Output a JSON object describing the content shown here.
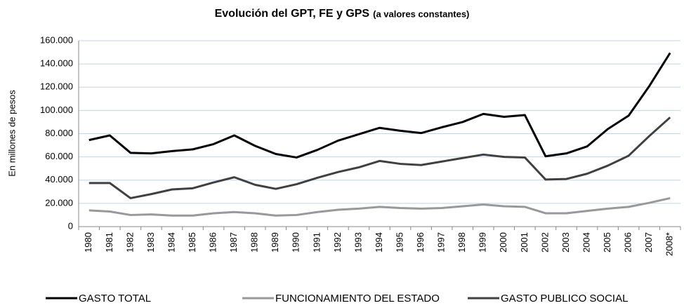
{
  "chart_data": {
    "type": "line",
    "title": "Evolución del GPT, FE y GPS",
    "subtitle": "(a valores constantes)",
    "y_label": "En millones de pesos",
    "categories": [
      "1980",
      "1981",
      "1982",
      "1983",
      "1984",
      "1985",
      "1986",
      "1987",
      "1988",
      "1989",
      "1990",
      "1991",
      "1992",
      "1993",
      "1994",
      "1995",
      "1996",
      "1997",
      "1998",
      "1999",
      "2000",
      "2001",
      "2002",
      "2003",
      "2004",
      "2005",
      "2006",
      "2007",
      "2008*"
    ],
    "series": [
      {
        "name": "GASTO TOTAL",
        "color": "#000000",
        "values": [
          74500,
          78500,
          63500,
          63000,
          65000,
          66500,
          71000,
          78500,
          69500,
          62500,
          59500,
          66000,
          74000,
          79500,
          85000,
          82500,
          80500,
          85500,
          90000,
          97000,
          94500,
          96000,
          60500,
          63000,
          69000,
          84000,
          95500,
          121000,
          149500
        ]
      },
      {
        "name": "FUNCIONAMIENTO DEL ESTADO",
        "color": "#999999",
        "values": [
          14000,
          13000,
          10000,
          10500,
          9500,
          9500,
          11500,
          12500,
          11500,
          9500,
          10000,
          12500,
          14500,
          15500,
          17000,
          16000,
          15500,
          16000,
          17500,
          19000,
          17500,
          17000,
          11500,
          11500,
          13500,
          15500,
          17000,
          20500,
          24500
        ]
      },
      {
        "name": "GASTO PUBLICO SOCIAL",
        "color": "#404040",
        "values": [
          37500,
          37500,
          24500,
          28000,
          32000,
          33000,
          38000,
          42500,
          36000,
          32500,
          36500,
          42000,
          47000,
          51000,
          56500,
          54000,
          53000,
          56000,
          59000,
          62000,
          60000,
          59500,
          40500,
          41000,
          45500,
          52500,
          61000,
          78000,
          94000
        ]
      }
    ],
    "ylim": [
      0,
      160000
    ],
    "yticks": [
      0,
      {
        "value": 20000,
        "label": "20.000"
      },
      {
        "value": 40000,
        "label": "40.000"
      },
      {
        "value": 60000,
        "label": "60.000"
      },
      {
        "value": 80000,
        "label": "80.000"
      },
      {
        "value": 100000,
        "label": "100.000"
      },
      {
        "value": 120000,
        "label": "120.000"
      },
      {
        "value": 140000,
        "label": "140.000"
      },
      {
        "value": 160000,
        "label": "160.000"
      }
    ],
    "grid": true
  }
}
